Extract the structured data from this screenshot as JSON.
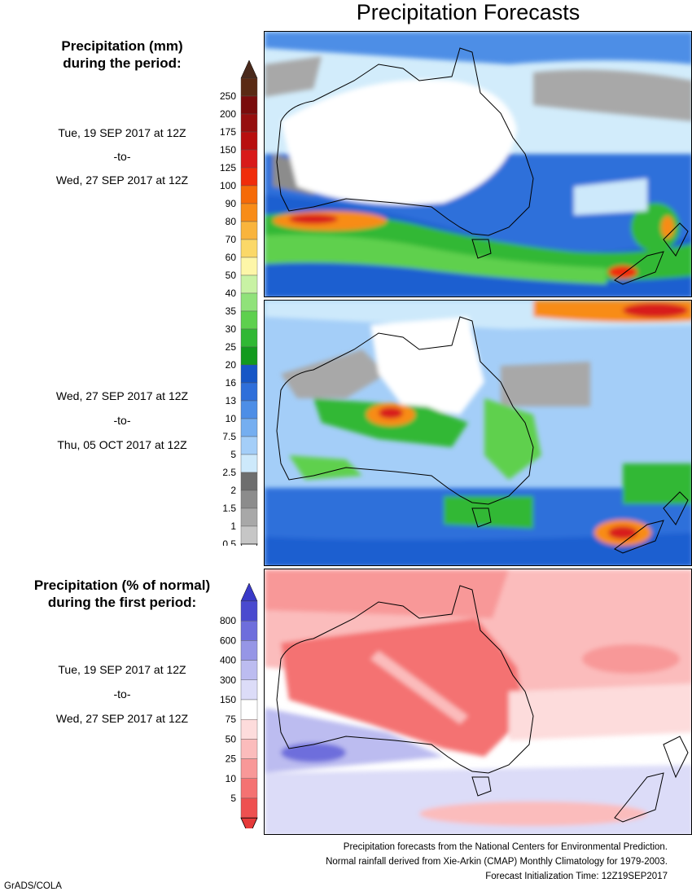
{
  "title": "Precipitation Forecasts",
  "legend_mm": {
    "heading_line1": "Precipitation (mm)",
    "heading_line2": "during the period:",
    "labels": [
      "250",
      "200",
      "175",
      "150",
      "125",
      "100",
      "90",
      "80",
      "70",
      "60",
      "50",
      "40",
      "35",
      "30",
      "25",
      "20",
      "16",
      "13",
      "10",
      "7.5",
      "5",
      "2.5",
      "2",
      "1.5",
      "1",
      "0.5"
    ],
    "colors": [
      "#5a2a14",
      "#7a0c0c",
      "#960f0f",
      "#b80f0f",
      "#d81a1a",
      "#f02c0a",
      "#f56a08",
      "#f88c18",
      "#f9b43c",
      "#fbd868",
      "#fdf6a8",
      "#c8f2a4",
      "#90e27a",
      "#5ed04e",
      "#30b834",
      "#129a1e",
      "#1656c6",
      "#2f6fda",
      "#4d8ee6",
      "#75aef0",
      "#a4ceF8",
      "#cde9fb",
      "#6e6e6e",
      "#8c8c8c",
      "#a8a8a8",
      "#c6c6c6"
    ],
    "top_arrow_color": "#4a2a1c",
    "bottom_arrow_color": "#ffffff"
  },
  "period1": {
    "start": "Tue, 19 SEP 2017 at 12Z",
    "to": "-to-",
    "end": "Wed, 27 SEP 2017 at 12Z"
  },
  "period2": {
    "start": "Wed, 27 SEP 2017 at 12Z",
    "to": "-to-",
    "end": "Thu, 05 OCT 2017 at 12Z"
  },
  "legend_pct": {
    "heading_line1": "Precipitation (% of normal)",
    "heading_line2": "during the first period:",
    "labels": [
      "800",
      "600",
      "400",
      "300",
      "150",
      "75",
      "50",
      "25",
      "10",
      "5"
    ],
    "colors": [
      "#4a4acf",
      "#6e6edc",
      "#9696e6",
      "#bcbcf0",
      "#dcdcf8",
      "#ffffff",
      "#fddcdc",
      "#fbbcbc",
      "#f89898",
      "#f47272",
      "#ee5050"
    ],
    "top_arrow_color": "#3a3ac8",
    "bottom_arrow_color": "#e53a3a"
  },
  "period3": {
    "start": "Tue, 19 SEP 2017 at 12Z",
    "to": "-to-",
    "end": "Wed, 27 SEP 2017 at 12Z"
  },
  "credits": {
    "line1": "Precipitation forecasts from the National Centers for Environmental Prediction.",
    "line2": "Normal rainfall derived from Xie-Arkin (CMAP) Monthly Climatology for 1979-2003.",
    "line3": "Forecast Initialization Time: 12Z19SEP2017"
  },
  "software": "GrADS/COLA"
}
